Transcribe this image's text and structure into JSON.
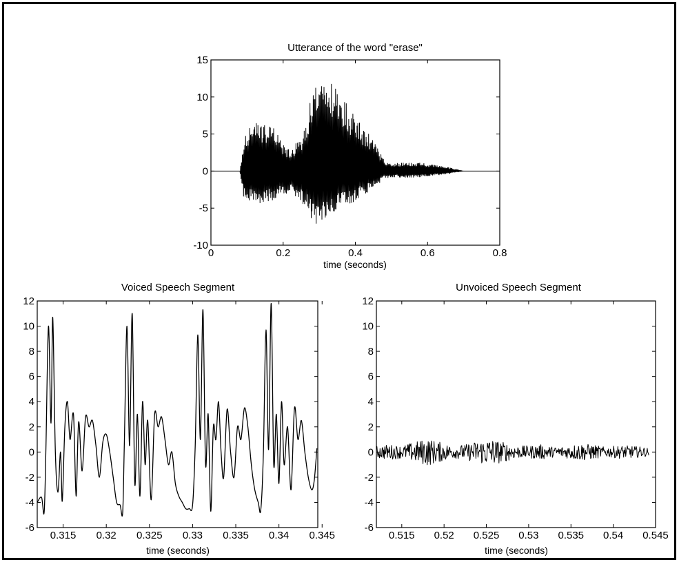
{
  "chart_data": [
    {
      "type": "line",
      "title": "Utterance of the word \"erase\"",
      "xlabel": "time (seconds)",
      "ylabel": "",
      "xlim": [
        0,
        0.8
      ],
      "ylim": [
        -10,
        15
      ],
      "xticks": [
        "0",
        "0.2",
        "0.4",
        "0.6",
        "0.8"
      ],
      "yticks": [
        "-10",
        "-5",
        "0",
        "5",
        "10",
        "15"
      ],
      "grid": false,
      "series": [
        {
          "x": [
            0,
            0.08,
            0.09,
            0.1,
            0.12,
            0.15,
            0.18,
            0.2,
            0.22,
            0.25,
            0.27,
            0.29,
            0.31,
            0.34,
            0.37,
            0.4,
            0.43,
            0.46,
            0.48,
            0.5,
            0.55,
            0.6,
            0.65,
            0.7,
            0.8
          ],
          "upper": [
            0,
            0,
            3.5,
            6,
            6.5,
            6.2,
            6,
            3.5,
            3,
            4.5,
            9,
            12,
            11.5,
            12,
            10,
            7.5,
            5.5,
            3.5,
            1.5,
            1,
            1.2,
            1,
            0.6,
            0,
            0
          ],
          "lower": [
            0,
            0,
            -3.5,
            -4.2,
            -4.5,
            -4.2,
            -4,
            -3,
            -3,
            -4,
            -6,
            -7.5,
            -6.5,
            -5.5,
            -5,
            -4,
            -3,
            -2,
            -1,
            -0.8,
            -0.9,
            -0.7,
            -0.4,
            0,
            0
          ]
        }
      ]
    },
    {
      "type": "line",
      "title": "Voiced Speech Segment",
      "xlabel": "time (seconds)",
      "ylabel": "",
      "xlim": [
        0.312,
        0.3445
      ],
      "ylim": [
        -6,
        12
      ],
      "xticks": [
        "0.315",
        "0.32",
        "0.325",
        "0.33",
        "0.335",
        "0.34",
        "0.345"
      ],
      "yticks": [
        "-6",
        "-4",
        "-2",
        "0",
        "2",
        "4",
        "6",
        "8",
        "10",
        "12"
      ],
      "grid": false,
      "series": [
        {
          "x": [
            0.312,
            0.3125,
            0.3128,
            0.313,
            0.3133,
            0.3136,
            0.3138,
            0.3141,
            0.3144,
            0.3147,
            0.3149,
            0.3152,
            0.3155,
            0.3158,
            0.3162,
            0.3165,
            0.3168,
            0.3172,
            0.3176,
            0.318,
            0.3184,
            0.3188,
            0.3192,
            0.3196,
            0.32,
            0.3204,
            0.3208,
            0.3212,
            0.3216,
            0.3219,
            0.3221,
            0.3224,
            0.3227,
            0.323,
            0.3233,
            0.3236,
            0.3239,
            0.3242,
            0.3245,
            0.3248,
            0.3252,
            0.3256,
            0.326,
            0.3264,
            0.3268,
            0.3272,
            0.3276,
            0.328,
            0.3284,
            0.3288,
            0.3292,
            0.3296,
            0.33,
            0.3303,
            0.3306,
            0.3309,
            0.3312,
            0.3315,
            0.3318,
            0.3321,
            0.3324,
            0.3327,
            0.333,
            0.3333,
            0.3336,
            0.334,
            0.3344,
            0.3348,
            0.3352,
            0.3356,
            0.336,
            0.3364,
            0.3368,
            0.3372,
            0.3376,
            0.3379,
            0.3382,
            0.3385,
            0.3388,
            0.3391,
            0.3394,
            0.3397,
            0.34,
            0.3403,
            0.3406,
            0.341,
            0.3414,
            0.3418,
            0.3422,
            0.3426,
            0.343,
            0.3434,
            0.3438,
            0.3441,
            0.3444
          ],
          "y": [
            -4,
            -3.6,
            -4.8,
            0,
            10,
            2.3,
            10.7,
            0,
            -3.2,
            0,
            -3.9,
            2,
            4,
            1,
            3,
            -3.5,
            2.4,
            -1.5,
            2.8,
            2,
            2.5,
            0.5,
            -2,
            0.8,
            1.4,
            0,
            -2,
            -4,
            -4.2,
            -4.8,
            1,
            10,
            0.5,
            11,
            -2.5,
            3,
            -3.5,
            4,
            -1,
            2.5,
            -3.8,
            3,
            2,
            2.8,
            1,
            -1,
            0,
            -2.5,
            -3.5,
            -4,
            -4.5,
            -4.5,
            -4.2,
            0.5,
            9.3,
            1,
            11.3,
            -1,
            3,
            -4.7,
            2,
            1,
            4,
            0,
            -2,
            3.4,
            0,
            -2,
            2,
            1,
            3.5,
            2,
            -1,
            -3,
            -4,
            -4.6,
            0,
            9.7,
            0.2,
            11.8,
            -1,
            3,
            -2.5,
            4,
            -1,
            2,
            -3,
            3.5,
            1,
            2.5,
            0,
            -2,
            -3,
            -2.2,
            0.3
          ]
        }
      ]
    },
    {
      "type": "line",
      "title": "Unvoiced Speech Segment",
      "xlabel": "time (seconds)",
      "ylabel": "",
      "xlim": [
        0.512,
        0.545
      ],
      "ylim": [
        -6,
        12
      ],
      "xticks": [
        "0.515",
        "0.52",
        "0.525",
        "0.53",
        "0.535",
        "0.54",
        "0.545"
      ],
      "yticks": [
        "-6",
        "-4",
        "-2",
        "0",
        "2",
        "4",
        "6",
        "8",
        "10",
        "12"
      ],
      "grid": false,
      "series": [
        {
          "x": [
            0.512,
            0.5135,
            0.515,
            0.5165,
            0.518,
            0.5195,
            0.521,
            0.5225,
            0.524,
            0.5255,
            0.527,
            0.5285,
            0.53,
            0.5315,
            0.533,
            0.5345,
            0.536,
            0.5375,
            0.539,
            0.5405,
            0.542,
            0.5435,
            0.5442
          ],
          "amplitude": [
            0.5,
            0.6,
            0.5,
            0.8,
            1.1,
            0.8,
            0.5,
            0.6,
            0.9,
            1.1,
            0.8,
            0.5,
            0.5,
            0.6,
            0.4,
            0.5,
            0.7,
            0.6,
            0.4,
            0.5,
            0.5,
            0.4,
            0.3
          ]
        }
      ]
    }
  ]
}
